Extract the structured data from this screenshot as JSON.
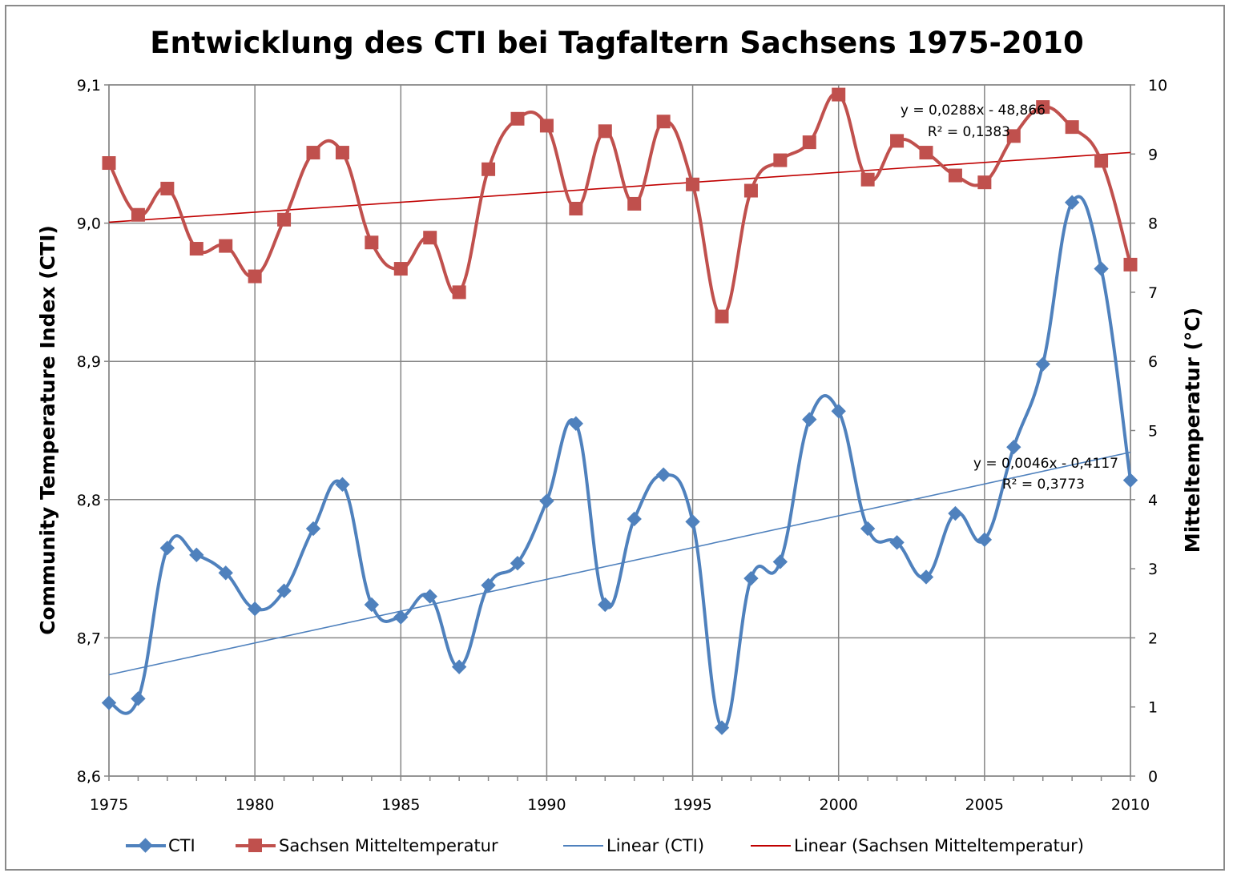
{
  "chart_data": {
    "type": "line",
    "title": "Entwicklung des CTI bei Tagfaltern Sachsens 1975-2010",
    "x_axis": {
      "ticks": [
        "1975",
        "1980",
        "1985",
        "1990",
        "1995",
        "2000",
        "2005",
        "2010"
      ],
      "range": [
        1975,
        2010
      ]
    },
    "y_left": {
      "label": "Community Temperature Index (CTI)",
      "ticks": [
        "8,6",
        "8,7",
        "8,8",
        "8,9",
        "9,0",
        "9,1"
      ],
      "range": [
        8.6,
        9.1
      ]
    },
    "y_right": {
      "label": "Mitteltemperatur (°C)",
      "ticks": [
        "0",
        "1",
        "2",
        "3",
        "4",
        "5",
        "6",
        "7",
        "8",
        "9",
        "10"
      ],
      "range": [
        0,
        10
      ]
    },
    "grid": true,
    "legend_position": "bottom",
    "x": [
      1975,
      1976,
      1977,
      1978,
      1979,
      1980,
      1981,
      1982,
      1983,
      1984,
      1985,
      1986,
      1987,
      1988,
      1989,
      1990,
      1991,
      1992,
      1993,
      1994,
      1995,
      1996,
      1997,
      1998,
      1999,
      2000,
      2001,
      2002,
      2003,
      2004,
      2005,
      2006,
      2007,
      2008,
      2009,
      2010
    ],
    "series": [
      {
        "name": "CTI",
        "axis": "left",
        "color": "#4f81bd",
        "marker": "diamond",
        "smooth": true,
        "values": [
          8.653,
          8.656,
          8.765,
          8.76,
          8.747,
          8.721,
          8.734,
          8.779,
          8.811,
          8.724,
          8.715,
          8.73,
          8.679,
          8.738,
          8.754,
          8.799,
          8.855,
          8.724,
          8.786,
          8.818,
          8.784,
          8.635,
          8.743,
          8.755,
          8.858,
          8.864,
          8.779,
          8.769,
          8.744,
          8.79,
          8.771,
          8.838,
          8.898,
          9.015,
          8.967,
          8.814
        ]
      },
      {
        "name": "Sachsen Mitteltemperatur",
        "axis": "right",
        "color": "#c0504d",
        "marker": "square",
        "smooth": true,
        "values": [
          8.87,
          8.12,
          8.5,
          7.63,
          7.67,
          7.23,
          8.05,
          9.02,
          9.02,
          7.72,
          7.34,
          7.79,
          7.0,
          8.78,
          9.51,
          9.41,
          8.21,
          9.33,
          8.28,
          9.47,
          8.56,
          6.65,
          8.47,
          8.91,
          9.17,
          9.86,
          8.63,
          9.19,
          9.02,
          8.69,
          8.59,
          9.26,
          9.68,
          9.39,
          8.9,
          7.4
        ]
      },
      {
        "name": "Linear (CTI)",
        "axis": "left",
        "color": "#4f81bd",
        "trendline_of": "CTI",
        "slope": 0.0046,
        "intercept": -0.4117
      },
      {
        "name": "Linear (Sachsen Mitteltemperatur)",
        "axis": "right",
        "color": "#c00000",
        "trendline_of": "Sachsen Mitteltemperatur",
        "slope": 0.0288,
        "intercept": -48.866
      }
    ],
    "annotations": [
      {
        "series": "Sachsen Mitteltemperatur",
        "equation": "y = 0,0288x - 48,866",
        "r2": "R² = 0,1383"
      },
      {
        "series": "CTI",
        "equation": "y = 0,0046x - 0,4117",
        "r2": "R² = 0,3773"
      }
    ]
  }
}
